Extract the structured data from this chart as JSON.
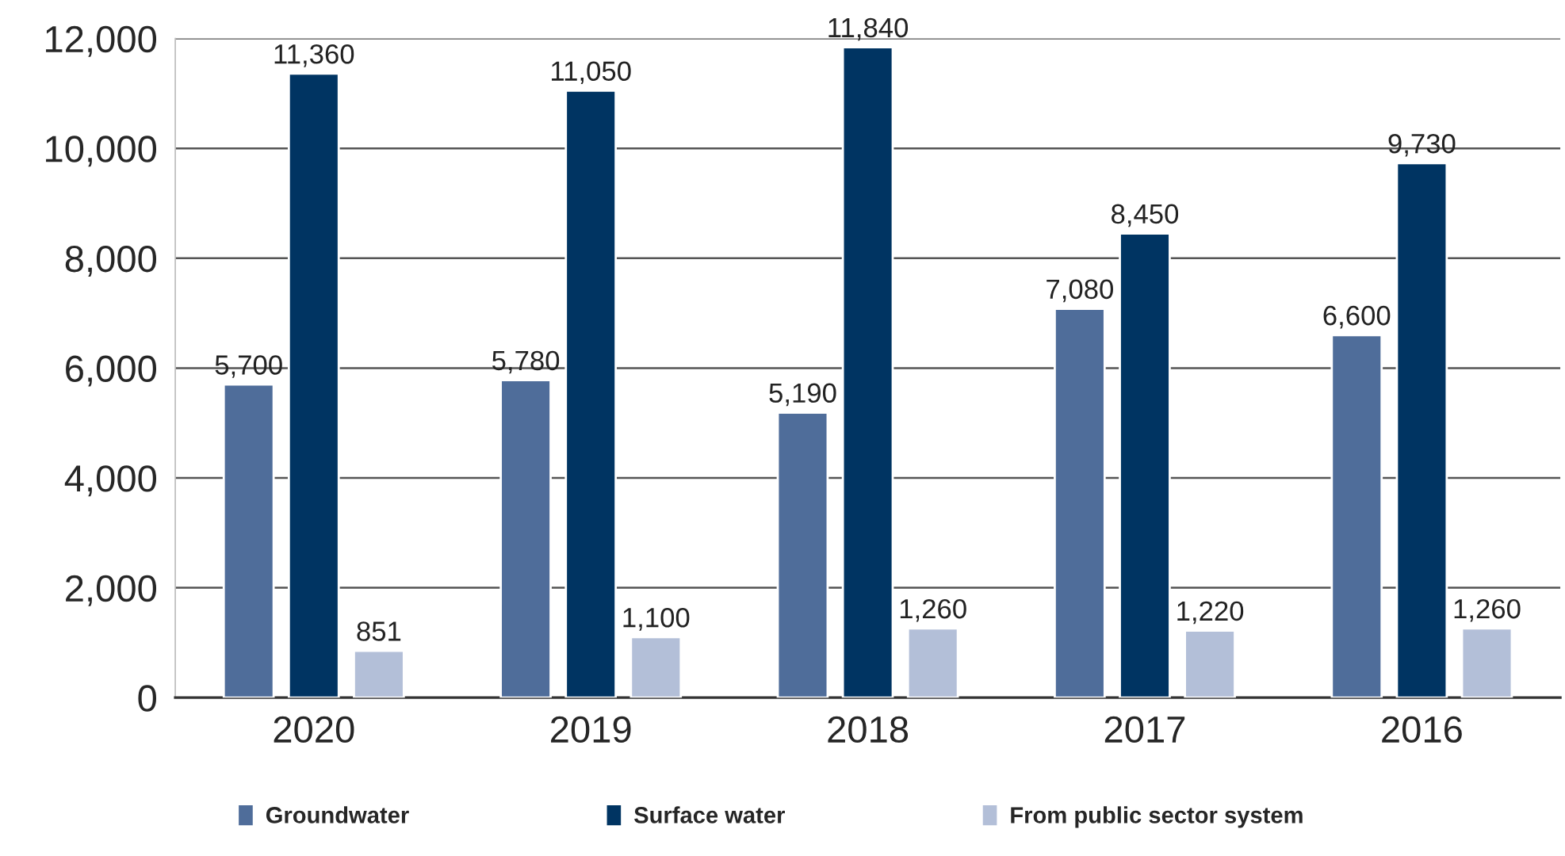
{
  "chart_data": {
    "type": "bar",
    "categories": [
      "2020",
      "2019",
      "2018",
      "2017",
      "2016"
    ],
    "series": [
      {
        "name": "Groundwater",
        "color": "#4f6d9a",
        "values": [
          5700,
          5780,
          5190,
          7080,
          6600
        ],
        "value_labels": [
          "5,700",
          "5,780",
          "5,190",
          "7,080",
          "6,600"
        ]
      },
      {
        "name": "Surface water",
        "color": "#003462",
        "values": [
          11360,
          11050,
          11840,
          8450,
          9730
        ],
        "value_labels": [
          "11,360",
          "11,050",
          "11,840",
          "8,450",
          "9,730"
        ]
      },
      {
        "name": "From public sector system",
        "color": "#b3bfd8",
        "values": [
          851,
          1100,
          1260,
          1220,
          1260
        ],
        "value_labels": [
          "851",
          "1,100",
          "1,260",
          "1,220",
          "1,260"
        ]
      }
    ],
    "ylim": [
      0,
      12000
    ],
    "yticks": [
      0,
      {
        "value": 2000,
        "label": "2,000"
      },
      {
        "value": 4000,
        "label": "4,000"
      },
      {
        "value": 6000,
        "label": "6,000"
      },
      {
        "value": 8000,
        "label": "8,000"
      },
      {
        "value": 10000,
        "label": "10,000"
      },
      {
        "value": 12000,
        "label": "12,000"
      }
    ],
    "grid": "y",
    "legend": "bottom"
  }
}
